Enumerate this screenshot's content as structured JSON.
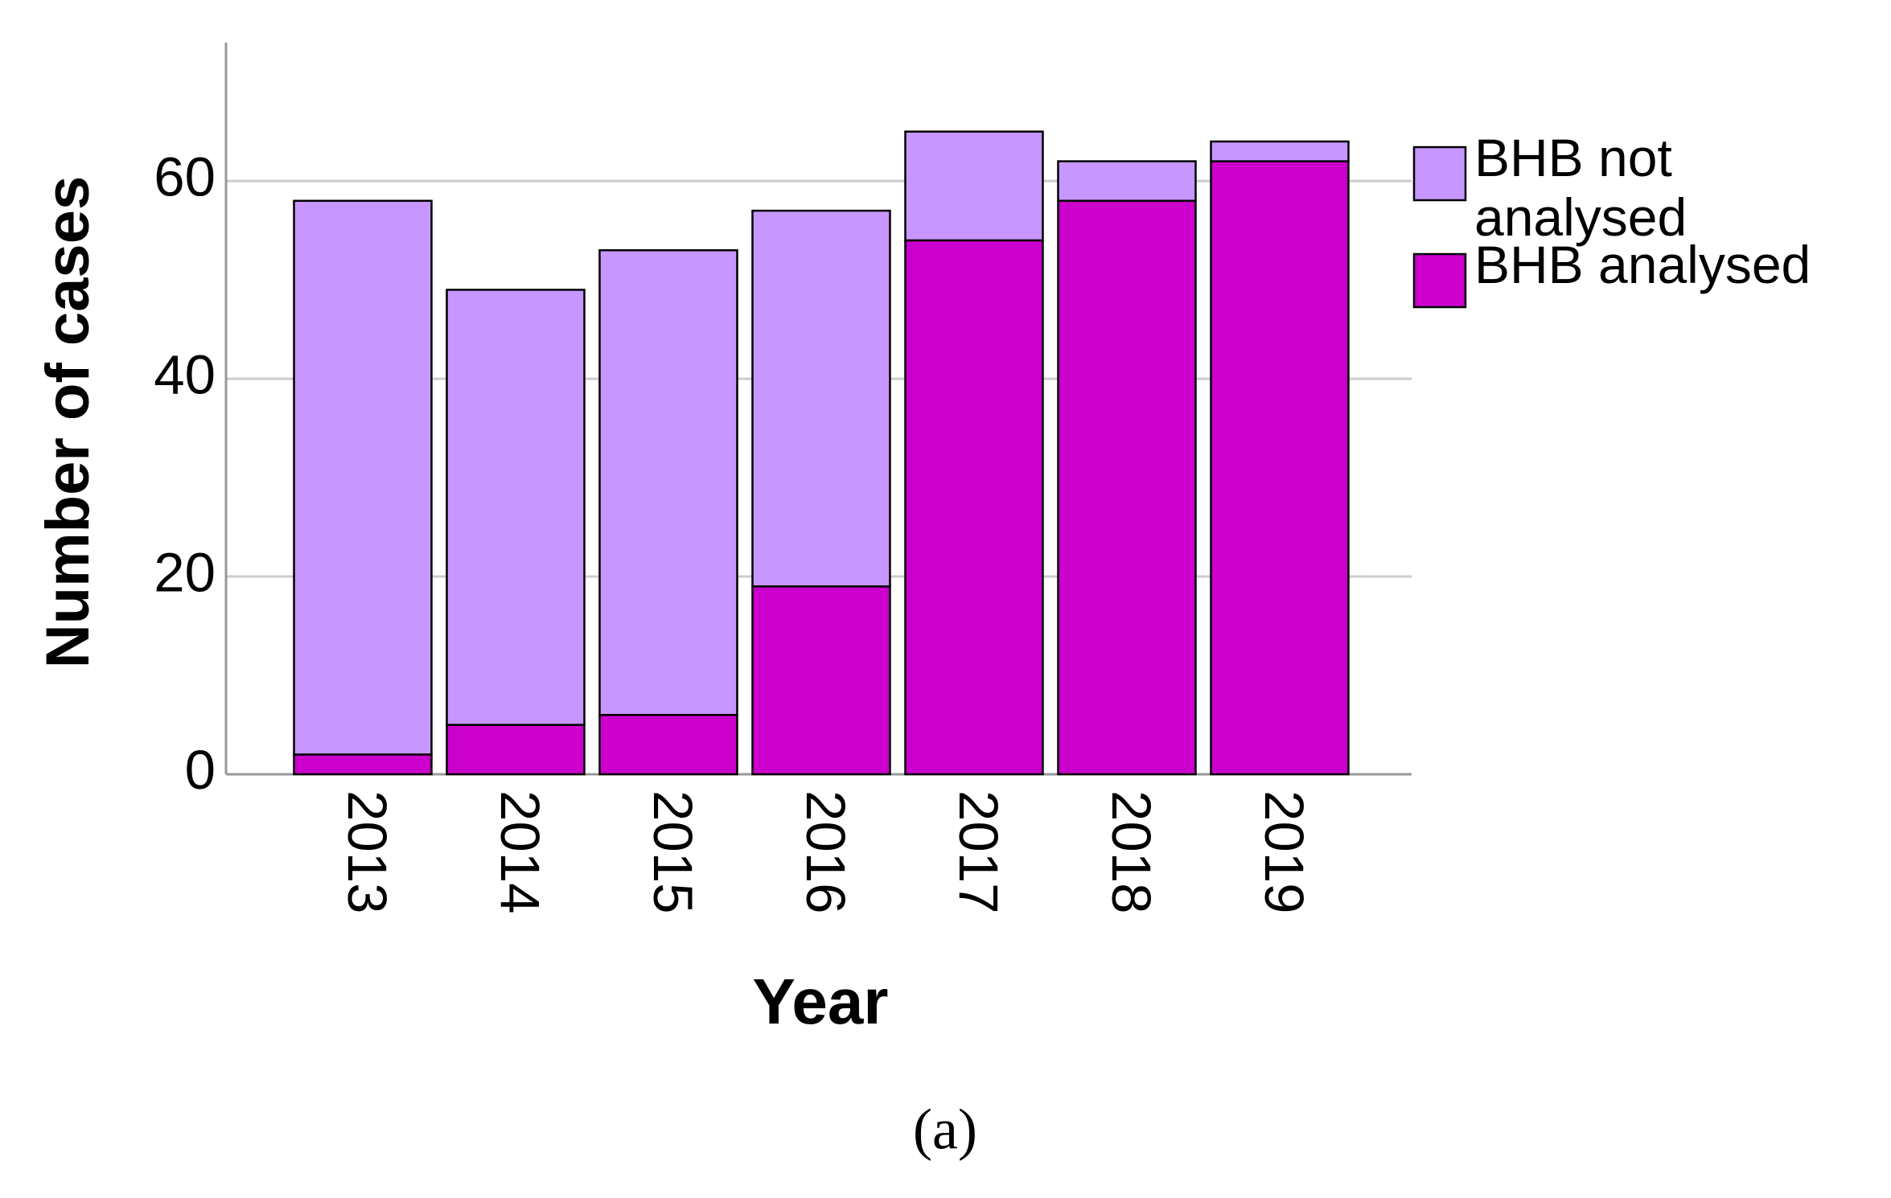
{
  "chart_data": {
    "type": "stacked_bar",
    "x_label": "Year",
    "y_label": "Number of cases",
    "caption": "(a)",
    "categories": [
      "2013",
      "2014",
      "2015",
      "2016",
      "2017",
      "2018",
      "2019"
    ],
    "series": [
      {
        "name": "BHB analysed",
        "color": "#cc00cc",
        "values": [
          2,
          5,
          6,
          19,
          54,
          58,
          62
        ]
      },
      {
        "name": "BHB not analysed",
        "color": "#c896ff",
        "values": [
          56,
          44,
          47,
          38,
          11,
          4,
          2
        ]
      }
    ],
    "ylim": [
      0,
      74
    ],
    "yticks": [
      0,
      20,
      40,
      60
    ],
    "grid": true,
    "legend": "right"
  }
}
